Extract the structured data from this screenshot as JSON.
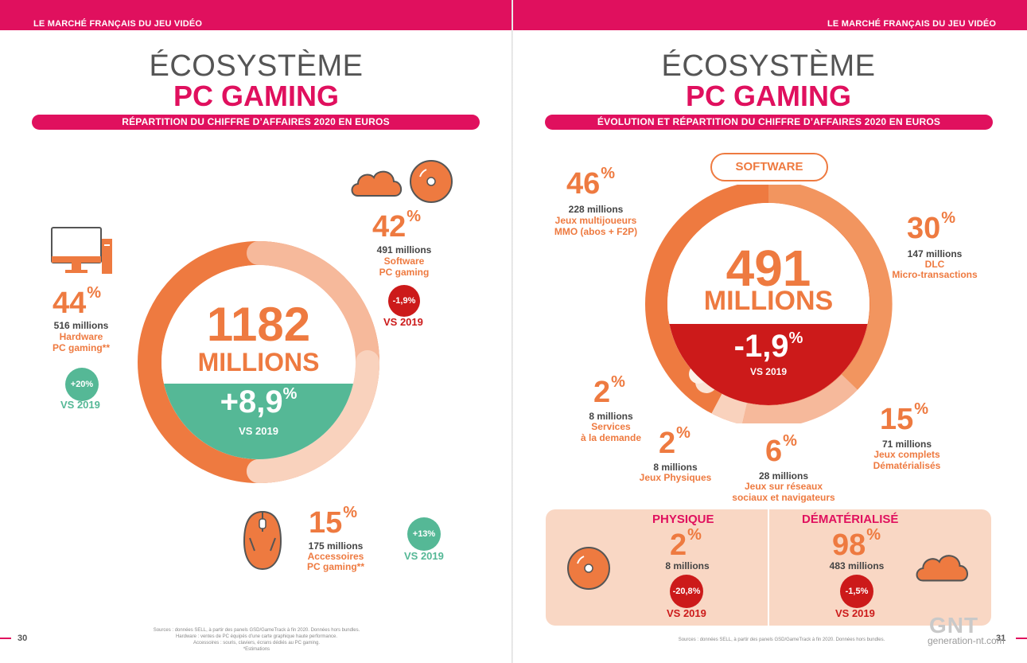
{
  "header": {
    "left_label": "LE MARCHÉ FRANÇAIS DU JEU VIDÉO",
    "right_label": "LE MARCHÉ FRANÇAIS DU JEU VIDÉO"
  },
  "left": {
    "title_line1": "ÉCOSYSTÈME",
    "title_line2": "PC GAMING",
    "banner": "RÉPARTITION DU CHIFFRE D’AFFAIRES 2020 EN EUROS",
    "center_value": "1182",
    "center_unit": "MILLIONS",
    "center_change": "+8,9",
    "center_change_sup": "%",
    "center_vs": "VS 2019",
    "hardware": {
      "pct": "44",
      "sup": "%",
      "amount": "516 millions",
      "line1": "Hardware",
      "line2": "PC gaming**",
      "badge": "+20%",
      "vs": "VS 2019"
    },
    "software": {
      "pct": "42",
      "sup": "%",
      "amount": "491 millions",
      "line1": "Software",
      "line2": "PC gaming",
      "badge": "-1,9%",
      "vs": "VS 2019"
    },
    "accessories": {
      "pct": "15",
      "sup": "%",
      "amount": "175 millions",
      "line1": "Accessoires",
      "line2": "PC gaming**",
      "badge": "+13%",
      "vs": "VS 2019"
    },
    "sources": [
      "Sources : données SELL, à partir des panels GSD/GameTrack à fin 2020. Données hors bundles.",
      "Hardware : ventes de PC équipés d’une carte graphique haute performance.",
      "Accessoires : souris, claviers, écrans dédiés au PC gaming.",
      "*Estimations"
    ],
    "page_number": "30",
    "chart_data": {
      "type": "pie",
      "categories": [
        "Hardware PC gaming**",
        "Software PC gaming",
        "Accessoires PC gaming**"
      ],
      "values": [
        44,
        42,
        15
      ],
      "title": "RÉPARTITION DU CHIFFRE D’AFFAIRES 2020 EN EUROS"
    }
  },
  "right": {
    "title_line1": "ÉCOSYSTÈME",
    "title_line2": "PC GAMING",
    "banner": "ÉVOLUTION ET RÉPARTITION DU CHIFFRE D’AFFAIRES 2020 EN EUROS",
    "software_label": "SOFTWARE",
    "center_value": "491",
    "center_unit": "MILLIONS",
    "center_change": "-1,9",
    "center_change_sup": "%",
    "center_vs": "VS 2019",
    "mmo": {
      "pct": "46",
      "sup": "%",
      "amount": "228 millions",
      "line1": "Jeux multijoueurs",
      "line2": "MMO (abos + F2P)"
    },
    "dlc": {
      "pct": "30",
      "sup": "%",
      "amount": "147 millions",
      "line1": "DLC",
      "line2": "Micro-transactions"
    },
    "services": {
      "pct": "2",
      "sup": "%",
      "amount": "8 millions",
      "line1": "Services",
      "line2": "à la demande"
    },
    "physiques": {
      "pct": "2",
      "sup": "%",
      "amount": "8 millions",
      "line1": "Jeux Physiques"
    },
    "reseaux": {
      "pct": "6",
      "sup": "%",
      "amount": "28 millions",
      "line1": "Jeux sur réseaux",
      "line2": "sociaux et navigateurs"
    },
    "complets": {
      "pct": "15",
      "sup": "%",
      "amount": "71 millions",
      "line1": "Jeux complets",
      "line2": "Dématérialisés"
    },
    "physique_box": {
      "title": "PHYSIQUE",
      "pct": "2",
      "sup": "%",
      "amount": "8 millions",
      "badge": "-20,8%",
      "vs": "VS 2019"
    },
    "demat_box": {
      "title": "DÉMATÉRIALISÉ",
      "pct": "98",
      "sup": "%",
      "amount": "483 millions",
      "badge": "-1,5%",
      "vs": "VS 2019"
    },
    "sources": "Sources : données SELL, à partir des panels GSD/GameTrack à fin 2020. Données hors bundles.",
    "page_number": "31",
    "chart_data": {
      "type": "pie",
      "categories": [
        "Jeux multijoueurs MMO (abos + F2P)",
        "DLC Micro-transactions",
        "Jeux complets Dématérialisés",
        "Jeux sur réseaux sociaux et navigateurs",
        "Jeux Physiques",
        "Services à la demande"
      ],
      "values": [
        46,
        30,
        15,
        6,
        2,
        2
      ],
      "title": "ÉVOLUTION ET RÉPARTITION DU CHIFFRE D’AFFAIRES 2020 EN EUROS"
    }
  },
  "watermark": {
    "logo": "GNT",
    "site": "generation-nt.com"
  },
  "colors": {
    "magenta": "#e0105e",
    "orange": "#ee7a40",
    "peach": "#f6b99b",
    "green": "#55b896",
    "red": "#cc1a1a"
  },
  "icons": [
    "monitor-tower-icon",
    "cloud-icon",
    "disc-icon",
    "mouse-icon"
  ]
}
